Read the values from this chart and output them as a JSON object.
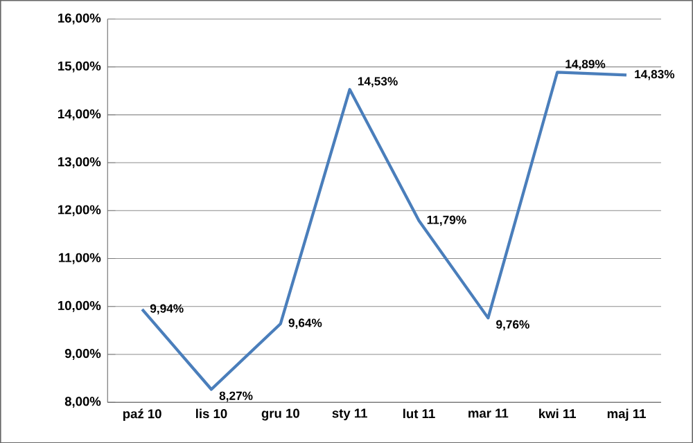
{
  "chart_data": {
    "type": "line",
    "categories": [
      "paź 10",
      "lis 10",
      "gru 10",
      "sty 11",
      "lut 11",
      "mar 11",
      "kwi 11",
      "maj 11"
    ],
    "values": [
      9.94,
      8.27,
      9.64,
      14.53,
      11.79,
      9.76,
      14.89,
      14.83
    ],
    "value_labels": [
      "9,94%",
      "8,27%",
      "9,64%",
      "14,53%",
      "11,79%",
      "9,76%",
      "14,89%",
      "14,83%"
    ],
    "color": "#4a7ebb",
    "ylim": [
      8,
      16
    ],
    "yticks": [
      {
        "value": 8,
        "label": "8,00%"
      },
      {
        "value": 9,
        "label": "9,00%"
      },
      {
        "value": 10,
        "label": "10,00%"
      },
      {
        "value": 11,
        "label": "11,00%"
      },
      {
        "value": 12,
        "label": "12,00%"
      },
      {
        "value": 13,
        "label": "13,00%"
      },
      {
        "value": 14,
        "label": "14,00%"
      },
      {
        "value": 15,
        "label": "15,00%"
      },
      {
        "value": 16,
        "label": "16,00%"
      }
    ],
    "grid": "y",
    "marker": "none",
    "line_style": "solid"
  }
}
